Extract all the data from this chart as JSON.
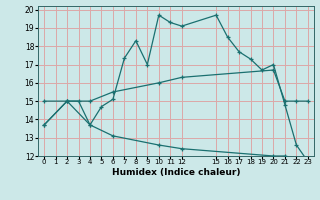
{
  "title": "",
  "xlabel": "Humidex (Indice chaleur)",
  "xlim": [
    -0.5,
    23.5
  ],
  "ylim": [
    12,
    20.2
  ],
  "yticks": [
    12,
    13,
    14,
    15,
    16,
    17,
    18,
    19,
    20
  ],
  "xtick_positions": [
    0,
    1,
    2,
    3,
    4,
    5,
    6,
    7,
    8,
    9,
    10,
    11,
    12,
    15,
    16,
    17,
    18,
    19,
    20,
    21,
    22,
    23
  ],
  "xtick_labels": [
    "0",
    "1",
    "2",
    "3",
    "4",
    "5",
    "6",
    "7",
    "8",
    "9",
    "10",
    "11",
    "12",
    "15",
    "16",
    "17",
    "18",
    "19",
    "20",
    "21",
    "22",
    "23"
  ],
  "background_color": "#cce8e8",
  "grid_color": "#dca8a8",
  "line_color": "#1a7070",
  "line1_x": [
    0,
    2,
    3,
    4,
    5,
    6,
    7,
    8,
    9,
    10,
    11,
    12,
    15,
    16,
    17,
    18,
    19,
    20,
    21,
    22,
    23
  ],
  "line1_y": [
    13.7,
    15.0,
    15.0,
    13.7,
    14.7,
    15.1,
    17.35,
    18.3,
    17.0,
    19.7,
    19.3,
    19.1,
    19.7,
    18.5,
    17.7,
    17.3,
    16.7,
    17.0,
    14.8,
    12.6,
    11.7
  ],
  "line2_x": [
    0,
    2,
    4,
    6,
    10,
    12,
    20,
    21,
    22,
    23
  ],
  "line2_y": [
    15.0,
    15.0,
    15.0,
    15.5,
    16.0,
    16.3,
    16.7,
    15.0,
    15.0,
    15.0
  ],
  "line3_x": [
    0,
    2,
    4,
    6,
    10,
    12,
    20,
    21,
    22,
    23
  ],
  "line3_y": [
    13.7,
    15.0,
    13.7,
    13.1,
    12.6,
    12.4,
    12.0,
    12.0,
    11.85,
    11.7
  ]
}
